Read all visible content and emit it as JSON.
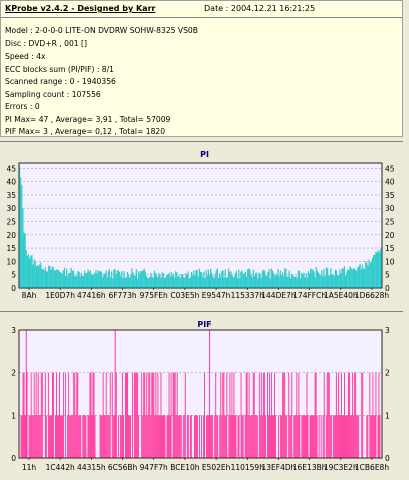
{
  "header": {
    "title": "KProbe v2.4.2 - Designed by Karr",
    "date": "Date : 2004.12.21 16:21:25"
  },
  "info_lines": [
    "Model : 2-0-0-0 LITE-ON DVDRW SOHW-8325  VS0B",
    "Disc : DVD+R , 001 []",
    "Speed : 4x",
    "ECC blocks sum (PI/PIF) : 8/1",
    "Scanned range : 0 - 1940356",
    "Sampling count : 107556",
    "Errors : 0",
    "PI Max= 47 , Average= 3,91 , Total= 57009",
    "PIF Max= 3 , Average= 0,12 , Total= 1820"
  ],
  "colors": {
    "pi_fill": "#33cccc",
    "pif_bar": "#ff3399",
    "plot_bg": "#f4f0ff",
    "grid": "#9999bb",
    "title": "#000080",
    "info_bg": "#ffffe1"
  },
  "chart_data": [
    {
      "type": "area",
      "title": "PI",
      "ylim": [
        0,
        47
      ],
      "yticks": [
        0,
        5,
        10,
        15,
        20,
        25,
        30,
        35,
        40,
        45
      ],
      "xticks": [
        "8Ah",
        "1E0D7h",
        "47416h",
        "6F773h",
        "975FEh",
        "C03E5h",
        "E9547h",
        "115337h",
        "144DE7h",
        "174FFCh",
        "1A5E40h",
        "1D6628h"
      ],
      "grid": true,
      "series": [
        {
          "values": [
            44,
            40,
            33,
            26,
            20,
            16,
            13,
            12,
            11,
            10,
            9.5,
            9,
            8.5,
            8.5,
            8,
            8,
            7.5,
            7.5,
            7,
            7,
            7,
            6.5,
            6.5,
            6.5,
            6,
            6,
            6,
            6,
            5.5,
            5.5,
            5.5,
            5.5,
            5,
            5,
            5,
            5,
            5,
            5,
            5,
            4.5,
            4.5,
            4.5,
            4.5,
            4.5,
            4.5,
            4.5,
            4.5,
            4.5,
            4.5,
            4.5,
            4,
            4,
            4,
            4,
            4,
            4,
            4,
            4,
            4,
            4,
            4,
            4,
            4,
            4,
            4,
            4,
            4,
            4,
            4,
            4,
            4,
            4,
            3.5,
            3.5,
            3.5,
            3.5,
            3.5,
            3.5,
            3.5,
            3.5,
            3.5,
            3.5,
            3.5,
            3.5,
            3.5,
            3.5,
            3.5,
            3.5,
            3.5,
            3.5,
            3.5,
            3.5,
            3.5,
            3.5,
            3.5,
            3.5,
            3.5,
            3.5,
            3.5,
            3.5,
            3.5,
            3.5,
            3.5,
            3.5,
            3.5,
            3.5,
            3.5,
            3.5,
            3.5,
            3.5,
            3.5,
            3.5,
            3.5,
            3.5,
            3.5,
            3.5,
            3.5,
            3.5,
            3.5,
            3.5,
            3.5,
            3.5,
            3.5,
            3.5,
            3.5,
            3.5,
            3.5,
            3.5,
            3.5,
            3.5,
            3.5,
            3.5,
            3.5,
            3.5,
            3.5,
            3.5,
            3.5,
            3.5,
            3.5,
            3.5,
            3.5,
            3.5,
            3.5,
            3.5,
            3.5,
            3.5,
            3.5,
            3.5,
            3.5,
            3.5,
            3.5,
            3.5,
            3.5,
            3.5,
            3.5,
            3.5,
            3.5,
            3.5,
            3.5,
            3.5,
            3.5,
            3.5,
            3.5,
            3.5,
            3.5,
            3.5,
            3.5,
            3.5,
            3.5,
            3.5,
            3.5,
            3.5,
            3.5,
            3.5,
            3.5,
            3.5,
            3.5,
            3.5,
            3.5,
            3.5,
            3.5,
            3.5,
            3.5,
            3.5,
            3.5,
            3.5,
            3.5,
            3.5,
            3.5,
            3.5,
            3.5,
            3.5,
            3.5,
            3.5,
            3.5,
            3.5,
            3.5,
            3.5,
            3.5,
            3.5,
            3.5,
            3.5,
            3.5,
            3.5,
            3.5,
            3.5,
            3.5,
            3.5,
            3.5,
            3.5,
            3.5,
            3.5,
            3.5,
            3.5,
            3.5,
            3.5,
            3.5,
            3.5,
            3.5,
            3.5,
            3.5,
            3.5,
            3.5,
            3.5,
            3.5,
            3.5,
            3.5,
            3.5,
            3.5,
            3.5,
            3.5,
            3.5,
            3.5,
            3.5,
            3.5,
            3.5,
            3.5,
            3.5,
            3.5,
            3.5,
            3.5,
            3.5,
            3.5,
            3.5,
            3.5,
            3.5,
            3.5,
            3.5,
            3.5,
            3.5,
            3.5,
            3.5,
            3.5,
            3.5,
            3.5,
            3.5,
            3.5,
            3.5,
            3.5,
            3.5,
            3.5,
            4,
            4,
            4,
            4,
            4,
            4,
            4,
            4,
            4,
            4,
            4,
            4,
            4,
            4,
            4,
            4,
            4,
            4,
            4,
            4,
            4,
            4,
            4.5,
            4.5,
            4.5,
            4.5,
            4.5,
            4.5,
            4.5,
            4.5,
            4.5,
            5,
            5,
            5,
            5,
            5,
            5,
            5.5,
            5.5,
            5.5,
            5.5,
            6,
            6,
            6,
            6.5,
            6.5,
            7,
            7,
            7.5,
            7.5,
            8,
            8.5,
            9,
            9.5,
            10,
            10.5,
            11,
            12,
            12.5,
            13,
            14,
            15
          ]
        },
        {
          "values": [
            46,
            42,
            38,
            32,
            25,
            20,
            17,
            15,
            14,
            13,
            12,
            12,
            11,
            11,
            10,
            10,
            10,
            9.5,
            9.5,
            9,
            9,
            9,
            8.5,
            8.5,
            8.5,
            8,
            8,
            8,
            8,
            8,
            7.5,
            7.5,
            7.5,
            7.5,
            7.5,
            7.5,
            7,
            7,
            7,
            7,
            7,
            7,
            7,
            7,
            7,
            7,
            7,
            7,
            7,
            7,
            6.5,
            6.5,
            6.5,
            6.5,
            6.5,
            6.5,
            6.5,
            6.5,
            6.5,
            6.5,
            6.5,
            6.5,
            6.5,
            6.5,
            6.5,
            6.5,
            6.5,
            6.5,
            6.5,
            6.5,
            6.5,
            6.5,
            6.5,
            6.5,
            6.5,
            6.5,
            6.5,
            6.5,
            6.5,
            6.5,
            6.5,
            6.5,
            6.5,
            6.5,
            6.5,
            6.5,
            6.5,
            6.5,
            6.5,
            6.5,
            6.5,
            6.5,
            6.5,
            6.5,
            6.5,
            6.5,
            6.5,
            6.5,
            6.5,
            6.5,
            6.5,
            6.5,
            6.5,
            6.5,
            6.5,
            6.5,
            6.5,
            6.5,
            6.5,
            6.5,
            6.5,
            6.5,
            6.5,
            6.5,
            6.5,
            6.5,
            6.5,
            6.5,
            6.5,
            6.5,
            6.5,
            6.5,
            6.5,
            6.5,
            6.5,
            6.5,
            6.5,
            6.5,
            6.5,
            6.5,
            6.5,
            6.5,
            6.5,
            6.5,
            6.5,
            6.5,
            6.5,
            6.5,
            6.5,
            6.5,
            6.5,
            6.5,
            6.5,
            6.5,
            6.5,
            6.5,
            6.5,
            6.5,
            6.5,
            6.5,
            6.5,
            6.5,
            6.5,
            6.5,
            6.5,
            6.5,
            6.5,
            6.5,
            6.5,
            6.5,
            6.5,
            6.5,
            6.5,
            6.5,
            6.5,
            6.5,
            6.5,
            6.5,
            6.5,
            6.5,
            6.5,
            6.5,
            6.5,
            6.5,
            6.5,
            6.5,
            6.5,
            6.5,
            6.5,
            6.5,
            6.5,
            6.5,
            6.5,
            6.5,
            6.5,
            6.5,
            6.5,
            6.5,
            6.5,
            6.5,
            6.5,
            6.5,
            6.5,
            6.5,
            6.5,
            6.5,
            6.5,
            6.5,
            6.5,
            6.5,
            6.5,
            6.5,
            6.5,
            6.5,
            6.5,
            6.5,
            6.5,
            6.5,
            6.5,
            6.5,
            6.5,
            6.5,
            6.5,
            6.5,
            6.5,
            6.5,
            6.5,
            6.5,
            6.5,
            6.5,
            6.5,
            6.5,
            6.5,
            6.5,
            6.5,
            6.5,
            6.5,
            6.5,
            6.5,
            6.5,
            6.5,
            6.5,
            6.5,
            6.5,
            6.5,
            6.5,
            6.5,
            6.5,
            6.5,
            6.5,
            6.5,
            6.5,
            6.5,
            6.5,
            6.5,
            6.5,
            6.5,
            6.5,
            6.5,
            6.5,
            6.5,
            6.5,
            6.5,
            6.5,
            6.5,
            6.5,
            6.5,
            6.5,
            6.5,
            6.5,
            6.5,
            6.5,
            6.5,
            7,
            7,
            7,
            7,
            7,
            7,
            7,
            7,
            7,
            7,
            7,
            7,
            7,
            7,
            7,
            7,
            7,
            7,
            7,
            7,
            7,
            7,
            7.5,
            7.5,
            7.5,
            7.5,
            7.5,
            7.5,
            7.5,
            7.5,
            7.5,
            8,
            8,
            8,
            8,
            8,
            8,
            8.5,
            8.5,
            8.5,
            8.5,
            9,
            9,
            9,
            9.5,
            9.5,
            10,
            10,
            10.5,
            10.5,
            11,
            11.5,
            12,
            12.5,
            13,
            13.5,
            14,
            15,
            15.5,
            16,
            17,
            17
          ]
        }
      ]
    },
    {
      "type": "bar",
      "title": "PIF",
      "ylim": [
        0,
        3
      ],
      "yticks": [
        0,
        1,
        2,
        3
      ],
      "xticks": [
        "11h",
        "1C442h",
        "44315h",
        "6C56Bh",
        "947F7h",
        "BCE10h",
        "E502Eh",
        "110159h",
        "13EF4Dh",
        "16E13Bh",
        "19C3E2h",
        "1CB6E8h"
      ],
      "grid": true,
      "seed": 7,
      "n_bars": 355,
      "fraction_level_1": 0.52,
      "fraction_level_2": 0.3,
      "spikes_level_3": [
        0.02,
        0.265,
        0.525
      ]
    }
  ]
}
